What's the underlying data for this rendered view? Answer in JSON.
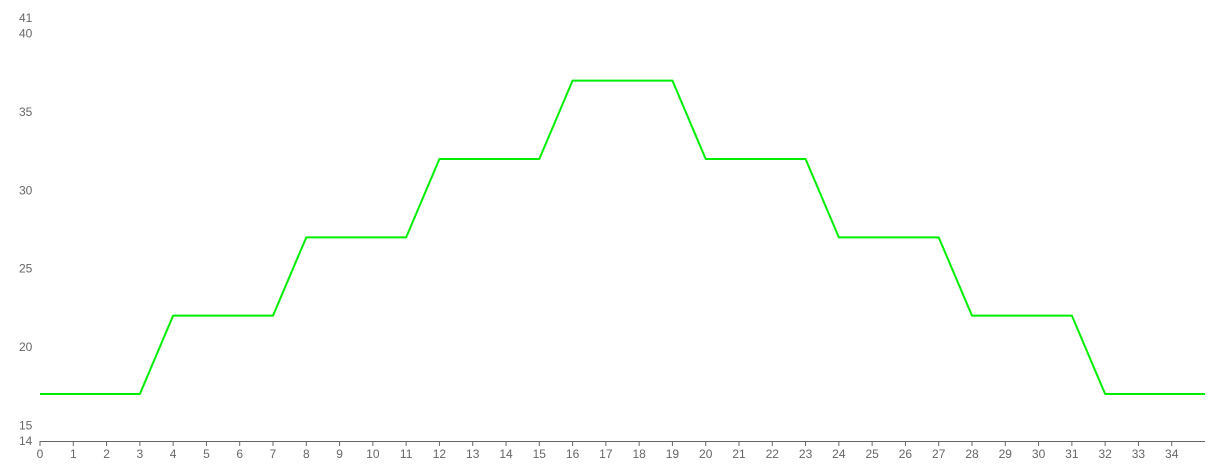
{
  "chart_data": {
    "type": "line",
    "title": "",
    "xlabel": "",
    "ylabel": "",
    "x": [
      0,
      1,
      2,
      3,
      4,
      5,
      6,
      7,
      8,
      9,
      10,
      11,
      12,
      13,
      14,
      15,
      16,
      17,
      18,
      19,
      20,
      21,
      22,
      23,
      24,
      25,
      26,
      27,
      28,
      29,
      30,
      31,
      32,
      33,
      34,
      35
    ],
    "series": [
      {
        "color": "#00ee00",
        "values": [
          17,
          17,
          17,
          17,
          22,
          22,
          22,
          22,
          27,
          27,
          27,
          27,
          32,
          32,
          32,
          32,
          37,
          37,
          37,
          37,
          32,
          32,
          32,
          32,
          27,
          27,
          27,
          27,
          22,
          22,
          22,
          22,
          17,
          17,
          17,
          17
        ]
      }
    ],
    "xlim": [
      0,
      35
    ],
    "ylim": [
      14,
      41
    ],
    "x_ticks": [
      "0",
      "1",
      "2",
      "3",
      "4",
      "5",
      "6",
      "7",
      "8",
      "9",
      "10",
      "11",
      "12",
      "13",
      "14",
      "15",
      "16",
      "17",
      "18",
      "19",
      "20",
      "21",
      "22",
      "23",
      "24",
      "25",
      "26",
      "27",
      "28",
      "29",
      "30",
      "31",
      "32",
      "33",
      "34"
    ],
    "y_ticks": [
      14,
      15,
      20,
      25,
      30,
      35,
      40,
      41
    ],
    "grid": false,
    "legend": "none"
  }
}
